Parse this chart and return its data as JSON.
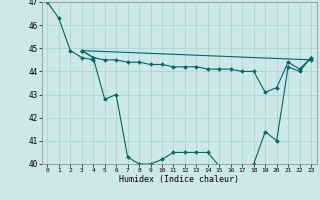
{
  "background_color": "#cce8e8",
  "grid_color": "#b0d4d4",
  "line_color": "#006666",
  "xlabel": "Humidex (Indice chaleur)",
  "xlim": [
    -0.5,
    23.5
  ],
  "ylim": [
    40,
    47
  ],
  "yticks": [
    40,
    41,
    42,
    43,
    44,
    45,
    46,
    47
  ],
  "xtick_labels": [
    "0",
    "1",
    "2",
    "3",
    "4",
    "5",
    "6",
    "7",
    "8",
    "9",
    "10",
    "11",
    "12",
    "13",
    "14",
    "15",
    "16",
    "17",
    "18",
    "19",
    "20",
    "21",
    "22",
    "23"
  ],
  "xtick_vals": [
    0,
    1,
    2,
    3,
    4,
    5,
    6,
    7,
    8,
    9,
    10,
    11,
    12,
    13,
    14,
    15,
    16,
    17,
    18,
    19,
    20,
    21,
    22,
    23
  ],
  "series": [
    {
      "x": [
        0,
        1,
        2,
        3,
        4
      ],
      "y": [
        47.0,
        46.3,
        44.9,
        44.6,
        44.5
      ]
    },
    {
      "x": [
        3,
        4,
        5,
        6,
        7,
        8,
        9,
        10,
        11,
        12,
        13,
        14,
        15,
        16,
        17,
        18,
        19,
        20,
        21,
        22,
        23
      ],
      "y": [
        44.9,
        44.6,
        42.8,
        43.0,
        40.3,
        40.0,
        40.0,
        40.2,
        40.5,
        40.5,
        40.5,
        40.5,
        39.9,
        39.8,
        39.8,
        40.0,
        41.4,
        41.0,
        44.2,
        44.0,
        44.6
      ]
    },
    {
      "x": [
        3,
        4,
        5,
        6,
        7,
        8,
        9,
        10,
        11,
        12,
        13,
        14,
        15,
        16,
        17,
        18,
        19,
        20,
        21,
        22,
        23
      ],
      "y": [
        44.9,
        44.6,
        44.5,
        44.5,
        44.4,
        44.4,
        44.3,
        44.3,
        44.2,
        44.2,
        44.2,
        44.1,
        44.1,
        44.1,
        44.0,
        44.0,
        43.1,
        43.3,
        44.4,
        44.1,
        44.6
      ]
    },
    {
      "x": [
        3,
        23
      ],
      "y": [
        44.9,
        44.5
      ]
    }
  ]
}
